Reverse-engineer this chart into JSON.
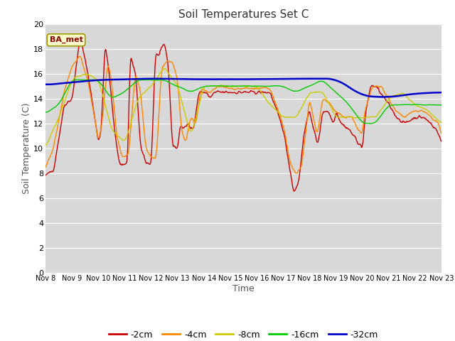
{
  "title": "Soil Temperatures Set C",
  "xlabel": "Time",
  "ylabel": "Soil Temperature (C)",
  "ylim": [
    0,
    20
  ],
  "yticks": [
    0,
    2,
    4,
    6,
    8,
    10,
    12,
    14,
    16,
    18,
    20
  ],
  "x_labels": [
    "Nov 8",
    "Nov 9",
    "Nov 10",
    "Nov 11",
    "Nov 12",
    "Nov 13",
    "Nov 14",
    "Nov 15",
    "Nov 16",
    "Nov 17",
    "Nov 18",
    "Nov 19",
    "Nov 20",
    "Nov 21",
    "Nov 22",
    "Nov 23"
  ],
  "n_days": 15,
  "bg_color": "#d8d8d8",
  "grid_color": "#ffffff",
  "fig_bg": "#ffffff",
  "line_colors": {
    "-2cm": "#cc0000",
    "-4cm": "#ff8800",
    "-8cm": "#cccc00",
    "-16cm": "#00cc00",
    "-32cm": "#0000cc"
  },
  "annotation_text": "BA_met",
  "legend_labels": [
    "-2cm",
    "-4cm",
    "-8cm",
    "-16cm",
    "-32cm"
  ]
}
